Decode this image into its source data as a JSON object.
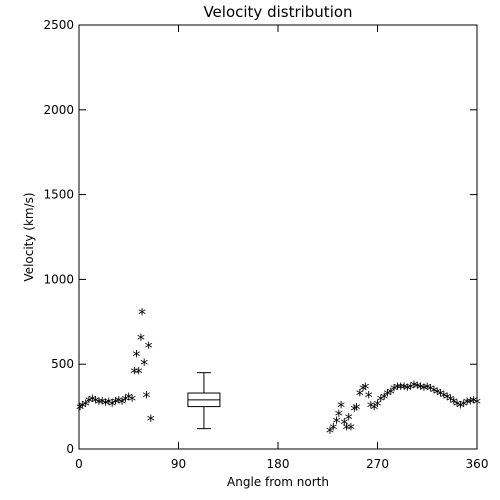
{
  "chart_data": {
    "type": "scatter",
    "title": "Velocity distribution",
    "xlabel": "Angle from north",
    "ylabel": "Velocity (km/s)",
    "xlim": [
      0,
      360
    ],
    "ylim": [
      0,
      2500
    ],
    "xticks": [
      0,
      90,
      180,
      270,
      360
    ],
    "yticks": [
      0,
      500,
      1000,
      1500,
      2000,
      2500
    ],
    "grid": false,
    "marker": "*",
    "series": [
      {
        "points": [
          [
            1,
            240
          ],
          [
            3,
            250
          ],
          [
            6,
            260
          ],
          [
            9,
            280
          ],
          [
            12,
            290
          ],
          [
            15,
            280
          ],
          [
            18,
            270
          ],
          [
            21,
            275
          ],
          [
            24,
            265
          ],
          [
            27,
            270
          ],
          [
            30,
            260
          ],
          [
            33,
            275
          ],
          [
            36,
            280
          ],
          [
            39,
            270
          ],
          [
            42,
            290
          ],
          [
            45,
            300
          ],
          [
            48,
            290
          ],
          [
            50,
            450
          ],
          [
            52,
            550
          ],
          [
            54,
            450
          ],
          [
            56,
            650
          ],
          [
            57,
            800
          ],
          [
            59,
            500
          ],
          [
            61,
            310
          ],
          [
            63,
            600
          ],
          [
            65,
            170
          ],
          [
            227,
            100
          ],
          [
            230,
            120
          ],
          [
            233,
            160
          ],
          [
            235,
            200
          ],
          [
            237,
            250
          ],
          [
            240,
            150
          ],
          [
            242,
            120
          ],
          [
            244,
            180
          ],
          [
            246,
            120
          ],
          [
            249,
            230
          ],
          [
            251,
            240
          ],
          [
            254,
            320
          ],
          [
            257,
            350
          ],
          [
            259,
            360
          ],
          [
            262,
            310
          ],
          [
            264,
            250
          ],
          [
            267,
            240
          ],
          [
            270,
            260
          ],
          [
            273,
            290
          ],
          [
            276,
            300
          ],
          [
            279,
            320
          ],
          [
            282,
            330
          ],
          [
            285,
            350
          ],
          [
            288,
            360
          ],
          [
            291,
            360
          ],
          [
            294,
            360
          ],
          [
            297,
            355
          ],
          [
            300,
            360
          ],
          [
            303,
            370
          ],
          [
            306,
            365
          ],
          [
            309,
            360
          ],
          [
            312,
            355
          ],
          [
            315,
            360
          ],
          [
            318,
            350
          ],
          [
            321,
            340
          ],
          [
            324,
            330
          ],
          [
            327,
            320
          ],
          [
            330,
            310
          ],
          [
            333,
            300
          ],
          [
            336,
            290
          ],
          [
            339,
            275
          ],
          [
            342,
            260
          ],
          [
            345,
            250
          ],
          [
            348,
            260
          ],
          [
            351,
            270
          ],
          [
            354,
            275
          ],
          [
            357,
            280
          ],
          [
            360,
            270
          ]
        ]
      }
    ],
    "boxplot": {
      "x": 113,
      "whisker_low": 120,
      "q1": 250,
      "median": 290,
      "q3": 330,
      "whisker_high": 450
    }
  }
}
